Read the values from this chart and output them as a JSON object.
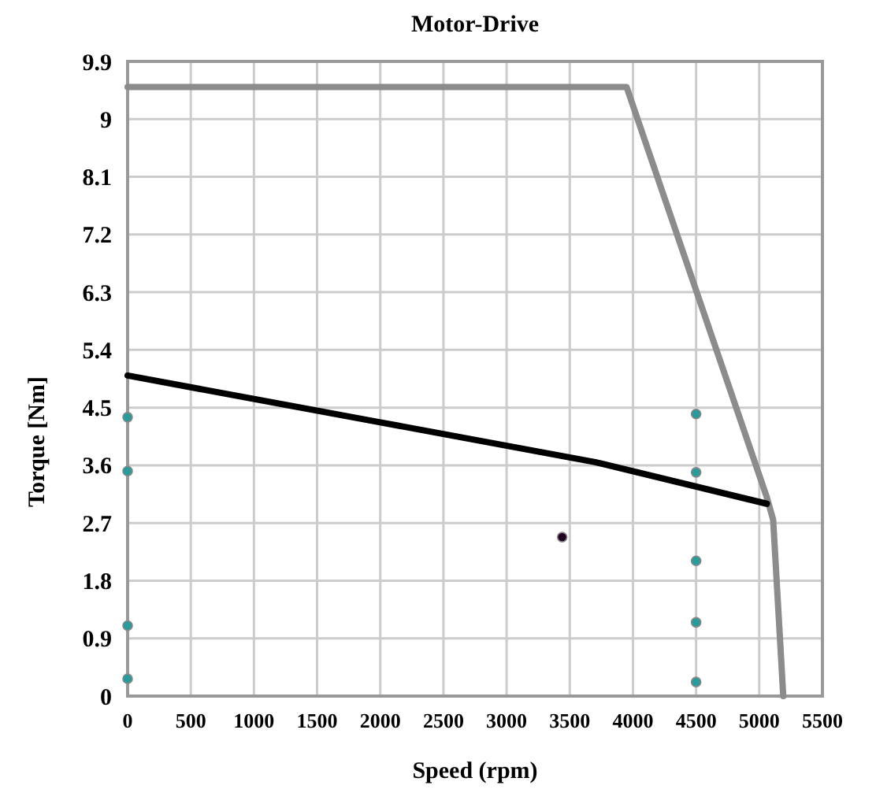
{
  "chart_data": {
    "type": "line",
    "title": "Motor-Drive",
    "xlabel": "Speed (rpm)",
    "ylabel": "Torque [Nm]",
    "xlim": [
      0,
      5500
    ],
    "xticks": [
      0,
      500,
      1000,
      1500,
      2000,
      2500,
      3000,
      3500,
      4000,
      4500,
      5000,
      5500
    ],
    "ylim": [
      0,
      9.9
    ],
    "yticks": [
      0,
      0.9,
      1.8,
      2.7,
      3.6,
      4.5,
      5.4,
      6.3,
      7.2,
      8.1,
      9,
      9.9
    ],
    "grid": true,
    "series": [
      {
        "color": "#8c8c8c",
        "x": [
          0,
          3950,
          5060,
          5110,
          5190
        ],
        "values": [
          9.5,
          9.5,
          3.1,
          2.75,
          0
        ]
      },
      {
        "color": "#000000",
        "x": [
          0,
          2000,
          3700,
          5060
        ],
        "values": [
          5.0,
          4.27,
          3.65,
          3.0
        ]
      },
      {
        "type": "scatter",
        "color": "#2a9a9a",
        "marker": "circle",
        "x": [
          0,
          0,
          0,
          0,
          4500,
          4500,
          4500,
          4500,
          4500
        ],
        "values": [
          4.35,
          3.51,
          1.1,
          0.27,
          4.4,
          3.49,
          2.11,
          1.15,
          0.22
        ]
      },
      {
        "type": "scatter",
        "color": "#200020",
        "marker": "circle",
        "x": [
          3440
        ],
        "values": [
          2.48
        ]
      }
    ]
  }
}
